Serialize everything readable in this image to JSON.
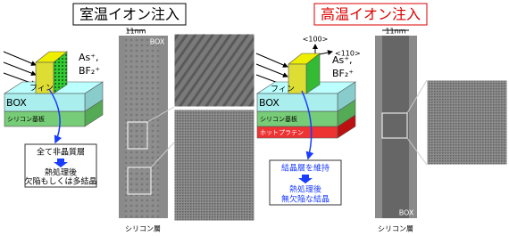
{
  "left": {
    "title": "室温イオン注入",
    "ion1": "As⁺,",
    "ion2": "BF₂⁺",
    "fin": "フィン",
    "box": "BOX",
    "substrate": "シリコン基板",
    "note": [
      "全て非晶質層",
      "熱処理後",
      "欠陥もしくは多結晶"
    ],
    "scale": "11nm",
    "tem_box": "BOX",
    "silicon": "シリコン層"
  },
  "right": {
    "title": "高温イオン注入",
    "dir1": "<100>",
    "dir2": "<110>",
    "ion1": "As⁺,",
    "ion2": "BF₂⁺",
    "fin": "フィン",
    "box": "BOX",
    "substrate": "シリコン基板",
    "hotplate": "ホットプラテン",
    "note": [
      "結晶層を維持",
      "熱処理後",
      "無欠陥な結晶"
    ],
    "scale": "11nm",
    "tem_box": "BOX",
    "silicon": "シリコン層"
  }
}
